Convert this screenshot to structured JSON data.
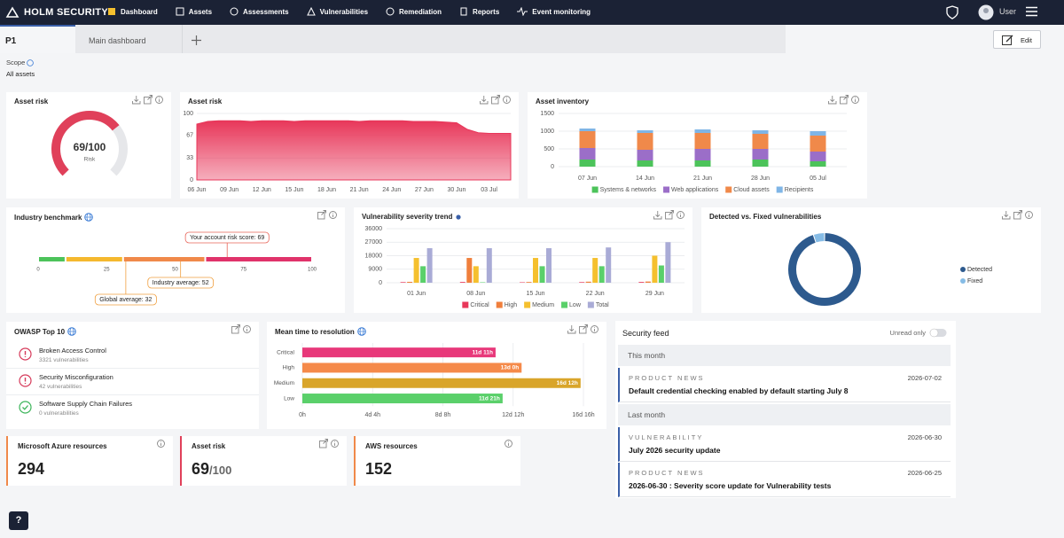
{
  "nav": {
    "brand": "HOLM SECURITY",
    "items": [
      "Dashboard",
      "Assets",
      "Assessments",
      "Vulnerabilities",
      "Remediation",
      "Reports",
      "Event monitoring"
    ],
    "user": "User"
  },
  "tabs": {
    "items": [
      "P1",
      "Main dashboard"
    ],
    "edit": "Edit"
  },
  "scope": {
    "label": "Scope",
    "value": "All assets"
  },
  "asset_risk_gauge": {
    "type": "gauge",
    "title": "Asset risk",
    "value": 69,
    "max": 100,
    "value_label": "69/100",
    "label": "Risk",
    "color": "#e0405a"
  },
  "asset_risk_trend": {
    "type": "area",
    "title": "Asset risk",
    "categories": [
      "06 Jun",
      null,
      null,
      "09 Jun",
      null,
      null,
      "12 Jun",
      null,
      null,
      "15 Jun",
      null,
      null,
      "18 Jun",
      null,
      null,
      "21 Jun",
      null,
      null,
      "24 Jun",
      null,
      null,
      "27 Jun",
      null,
      null,
      "30 Jun",
      null,
      null,
      "03 Jul",
      null,
      null
    ],
    "values": [
      84,
      88,
      89,
      89,
      89,
      88,
      89,
      89,
      89,
      88,
      89,
      89,
      89,
      89,
      89,
      88,
      89,
      89,
      89,
      89,
      88,
      88,
      88,
      87,
      86,
      76,
      71,
      70,
      70,
      70
    ],
    "ylim": [
      0,
      100
    ],
    "yticks": [
      0,
      33,
      67,
      100
    ],
    "color": "#e8375a"
  },
  "asset_inventory": {
    "type": "stacked_bar",
    "title": "Asset inventory",
    "categories": [
      "07 Jun",
      "14 Jun",
      "21 Jun",
      "28 Jun",
      "05 Jul"
    ],
    "series": [
      {
        "name": "Systems & networks",
        "color": "#4cc35a",
        "values": [
          200,
          175,
          175,
          200,
          150
        ]
      },
      {
        "name": "Web applications",
        "color": "#9b6ec8",
        "values": [
          325,
          300,
          325,
          300,
          275
        ]
      },
      {
        "name": "Cloud assets",
        "color": "#f0894a",
        "values": [
          475,
          475,
          450,
          425,
          450
        ]
      },
      {
        "name": "Recipients",
        "color": "#7fb5e6",
        "values": [
          75,
          75,
          100,
          100,
          125
        ]
      }
    ],
    "ylim": [
      0,
      1500
    ],
    "yticks": [
      0,
      500,
      1000,
      1500
    ]
  },
  "industry_benchmark": {
    "type": "benchmark",
    "title": "Industry benchmark",
    "xlim": [
      0,
      100
    ],
    "xticks": [
      0,
      25,
      50,
      75,
      100
    ],
    "bands": [
      {
        "from": 0,
        "to": 10,
        "color": "#4cc35a"
      },
      {
        "from": 10,
        "to": 31,
        "color": "#f5b82e"
      },
      {
        "from": 31,
        "to": 61,
        "color": "#f0894a"
      },
      {
        "from": 61,
        "to": 100,
        "color": "#e0336a"
      }
    ],
    "markers": [
      {
        "label": "Your account risk score: 69",
        "value": 69,
        "color": "#e8655a"
      },
      {
        "label": "Industry average: 52",
        "value": 52,
        "color": "#f0a040"
      },
      {
        "label": "Global average: 32",
        "value": 32,
        "color": "#f0a040"
      }
    ]
  },
  "vulnerability_trend": {
    "type": "grouped_bar",
    "title": "Vulnerability severity trend",
    "categories": [
      "01 Jun",
      "08 Jun",
      "15 Jun",
      "22 Jun",
      "29 Jun"
    ],
    "series": [
      {
        "name": "Critical",
        "color": "#e8375a",
        "values": [
          400,
          500,
          300,
          400,
          500
        ]
      },
      {
        "name": "High",
        "color": "#f07f3c",
        "values": [
          600,
          16500,
          500,
          700,
          800
        ]
      },
      {
        "name": "Medium",
        "color": "#f5c02e",
        "values": [
          16500,
          11000,
          16500,
          16500,
          18000
        ]
      },
      {
        "name": "Low",
        "color": "#5ad06a",
        "values": [
          11000,
          300,
          11000,
          11000,
          11500
        ]
      },
      {
        "name": "Total",
        "color": "#a9abd6",
        "values": [
          23000,
          23000,
          23000,
          23500,
          27000
        ]
      }
    ],
    "ylim": [
      0,
      36000
    ],
    "yticks": [
      0,
      9000,
      18000,
      27000,
      36000
    ]
  },
  "detected_fixed": {
    "type": "donut",
    "title": "Detected vs. Fixed vulnerabilities",
    "series": [
      {
        "name": "Detected",
        "color": "#2d5a8e",
        "value": 95
      },
      {
        "name": "Fixed",
        "color": "#86bce6",
        "value": 5
      }
    ]
  },
  "owasp": {
    "title": "OWASP Top 10",
    "items": [
      {
        "name": "Broken Access Control",
        "detail": "3321 vulnerabilities",
        "color": "#d63a5a"
      },
      {
        "name": "Security Misconfiguration",
        "detail": "42 vulnerabilities",
        "color": "#d63a5a"
      },
      {
        "name": "Software Supply Chain Failures",
        "detail": "0 vulnerabilities",
        "color": "#3cb55a"
      }
    ]
  },
  "mean_time_to_resolution": {
    "type": "hbar",
    "title": "Mean time to resolution",
    "categories": [
      "Critical",
      "High",
      "Medium",
      "Low"
    ],
    "values": [
      275,
      312,
      396,
      285
    ],
    "value_labels": [
      "11d 11h",
      "13d 0h",
      "16d 12h",
      "11d 21h"
    ],
    "colors": [
      "#e8387a",
      "#f58a4a",
      "#d9a52a",
      "#5ad06a"
    ],
    "xlim": [
      0,
      400
    ],
    "xticks": [
      {
        "value": 0,
        "label": "0h"
      },
      {
        "value": 100,
        "label": "4d 4h"
      },
      {
        "value": 200,
        "label": "8d 8h"
      },
      {
        "value": 300,
        "label": "12d 12h"
      },
      {
        "value": 400,
        "label": "16d 16h"
      }
    ]
  },
  "tiles": [
    {
      "title": "Microsoft Azure resources",
      "value": 294,
      "color": "#f0894a"
    },
    {
      "title": "Asset risk",
      "value": 69,
      "suffix": "/100",
      "color": "#e0405a"
    },
    {
      "title": "AWS resources",
      "value": 152,
      "color": "#f0894a"
    }
  ],
  "security_feed": {
    "title": "Security feed",
    "filter": "Unread only",
    "groups": [
      {
        "name": "This month",
        "items": [
          {
            "type": "PRODUCT NEWS",
            "date": "2026-07-02",
            "title": "Default credential checking enabled by default starting July 8"
          }
        ]
      },
      {
        "name": "Last month",
        "items": [
          {
            "type": "VULNERABILITY",
            "date": "2026-06-30",
            "title": "July 2026 security update"
          },
          {
            "type": "PRODUCT NEWS",
            "date": "2026-06-25",
            "title": "2026-06-30 : Severity score update for Vulnerability tests"
          }
        ]
      }
    ]
  },
  "help": "?"
}
